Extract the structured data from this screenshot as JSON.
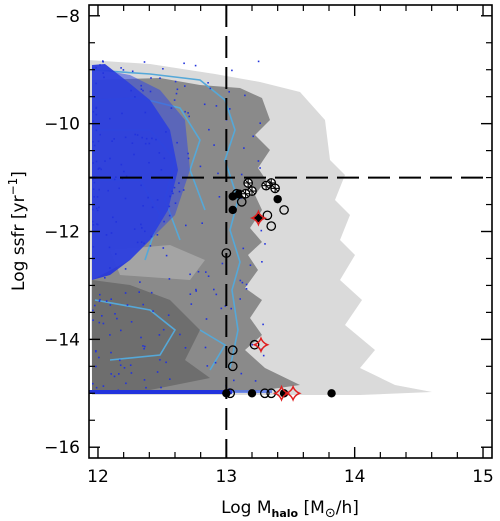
{
  "chart_data": {
    "type": "scatter",
    "title": "",
    "xlabel": {
      "main": "Log M",
      "sub": "halo",
      "unit_open": " [M",
      "sun": "⊙",
      "unit_close": "/h]"
    },
    "ylabel": {
      "main": "Log ssfr [yr",
      "sup": "−1",
      "close": "]"
    },
    "xlim": [
      11.93,
      15.07
    ],
    "ylim": [
      -16.2,
      -7.8
    ],
    "x_ticks": [
      12,
      13,
      14,
      15
    ],
    "y_ticks": [
      -16,
      -14,
      -12,
      -10,
      -8
    ],
    "x_tick_labels": [
      "12",
      "13",
      "14",
      "15"
    ],
    "y_tick_labels": [
      "−16",
      "−14",
      "−12",
      "−10",
      "−8"
    ],
    "reference_lines": {
      "x": 13.0,
      "y": -11.0,
      "style": "long-dash"
    },
    "colors": {
      "light_region": "#dadada",
      "dark_region": "#8a8a8a",
      "blue_points": "#2233dd",
      "cyan_contour": "#55a8d8",
      "red_marker": "#e02020"
    },
    "series": [
      {
        "style": "filled-black-circle",
        "points": [
          [
            13.05,
            -11.35
          ],
          [
            13.1,
            -11.3
          ],
          [
            13.05,
            -11.6
          ],
          [
            13.25,
            -11.75
          ],
          [
            13.4,
            -11.4
          ],
          [
            13.0,
            -15.0
          ],
          [
            13.2,
            -15.0
          ],
          [
            13.45,
            -15.0
          ],
          [
            13.82,
            -15.0
          ]
        ]
      },
      {
        "style": "open-circle",
        "points": [
          [
            13.08,
            -11.3
          ],
          [
            13.12,
            -11.45
          ],
          [
            13.32,
            -11.7
          ],
          [
            13.45,
            -11.6
          ],
          [
            13.35,
            -11.9
          ],
          [
            13.0,
            -12.4
          ],
          [
            13.05,
            -14.2
          ],
          [
            13.05,
            -14.5
          ],
          [
            13.22,
            -14.1
          ],
          [
            13.03,
            -15.0
          ],
          [
            13.3,
            -15.0
          ],
          [
            13.35,
            -15.0
          ]
        ]
      },
      {
        "style": "crossed-circle",
        "points": [
          [
            13.17,
            -11.1
          ],
          [
            13.2,
            -11.25
          ],
          [
            13.15,
            -11.3
          ],
          [
            13.35,
            -11.1
          ],
          [
            13.38,
            -11.2
          ],
          [
            13.31,
            -11.15
          ]
        ]
      },
      {
        "style": "red-star",
        "points": [
          [
            13.25,
            -11.75
          ],
          [
            13.27,
            -14.1
          ],
          [
            13.43,
            -15.0
          ],
          [
            13.52,
            -15.0
          ]
        ]
      }
    ]
  }
}
